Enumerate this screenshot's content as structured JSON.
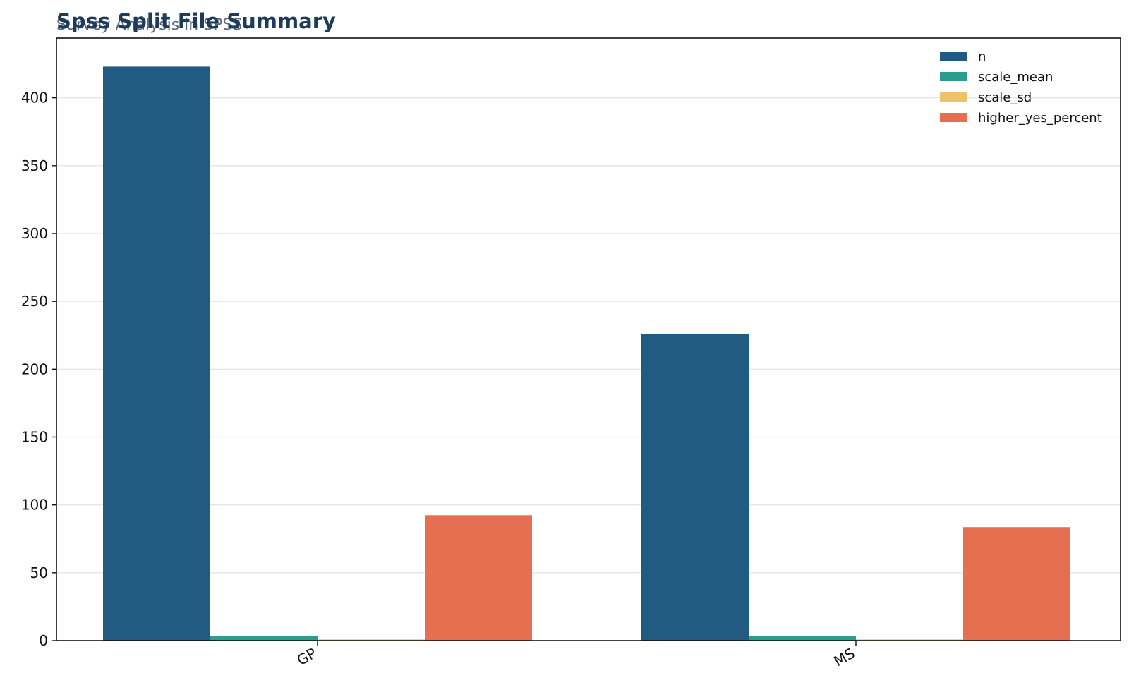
{
  "chart_data": {
    "type": "bar",
    "title": "Spss Split File Summary",
    "subtitle": "Survey Analysis in SPSS",
    "xlabel": "",
    "ylabel": "",
    "categories": [
      "GP",
      "MS"
    ],
    "series": [
      {
        "name": "n",
        "color": "#215b82",
        "values": [
          423,
          226
        ]
      },
      {
        "name": "scale_mean",
        "color": "#2a9d8f",
        "values": [
          3.4,
          3.3
        ]
      },
      {
        "name": "scale_sd",
        "color": "#e9c46a",
        "values": [
          0.9,
          0.9
        ]
      },
      {
        "name": "higher_yes_percent",
        "color": "#e76f51",
        "values": [
          92.4,
          83.6
        ]
      }
    ],
    "ylim": [
      0,
      444
    ],
    "yticks": [
      0,
      50,
      100,
      150,
      200,
      250,
      300,
      350,
      400
    ],
    "grid": "y",
    "legend_position": "top-right"
  }
}
